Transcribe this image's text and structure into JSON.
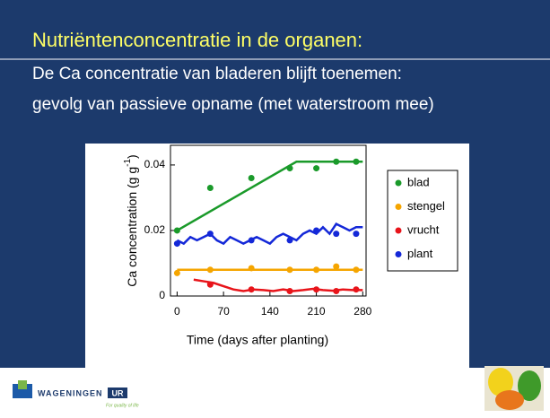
{
  "slide": {
    "title": "Nutriëntenconcentratie in de organen:",
    "lines": [
      "De Ca concentratie van bladeren blijft toenemen:",
      "gevolg van passieve opname (met waterstroom mee)"
    ],
    "logo": {
      "name": "WAGENINGEN",
      "badge": "UR",
      "tagline": "For quality of life"
    }
  },
  "chart_data": {
    "type": "scatter",
    "xlabel": "Time (days after planting)",
    "ylabel": "Ca concentration (g g",
    "ylabel_sup": "-1",
    "ylabel_end": ")",
    "xlim": [
      -10,
      285
    ],
    "xticks": [
      0,
      70,
      140,
      210,
      280
    ],
    "ylim": [
      0,
      0.046
    ],
    "yticks": [
      0,
      0.02,
      0.04
    ],
    "legend": "right",
    "series": [
      {
        "name": "blad",
        "color": "#1a9a2a",
        "x": [
          0,
          50,
          112,
          170,
          210,
          240,
          270
        ],
        "values": [
          0.02,
          0.033,
          0.036,
          0.039,
          0.039,
          0.041,
          0.041
        ],
        "fit_x": [
          0,
          180,
          280
        ],
        "fit_values": [
          0.02,
          0.041,
          0.041
        ]
      },
      {
        "name": "stengel",
        "color": "#f5a500",
        "x": [
          0,
          50,
          112,
          170,
          210,
          240,
          270
        ],
        "values": [
          0.007,
          0.008,
          0.0085,
          0.008,
          0.008,
          0.009,
          0.008
        ],
        "fit_x": [
          0,
          280
        ],
        "fit_values": [
          0.008,
          0.008
        ]
      },
      {
        "name": "vrucht",
        "color": "#e8141a",
        "x": [
          50,
          112,
          170,
          210,
          240,
          270
        ],
        "values": [
          0.0035,
          0.002,
          0.0015,
          0.002,
          0.0015,
          0.002
        ],
        "fit_x": [
          25,
          40,
          55,
          70,
          85,
          100,
          115,
          130,
          145,
          160,
          175,
          190,
          205,
          220,
          235,
          250,
          265,
          280
        ],
        "fit_values": [
          0.005,
          0.0045,
          0.004,
          0.003,
          0.002,
          0.0015,
          0.002,
          0.0018,
          0.0015,
          0.002,
          0.0015,
          0.0018,
          0.0022,
          0.0018,
          0.0016,
          0.002,
          0.0018,
          0.0018
        ]
      },
      {
        "name": "plant",
        "color": "#1428d8",
        "x": [
          0,
          50,
          112,
          170,
          210,
          240,
          270
        ],
        "values": [
          0.016,
          0.019,
          0.017,
          0.017,
          0.02,
          0.019,
          0.019
        ],
        "fit_x": [
          0,
          10,
          20,
          30,
          40,
          50,
          60,
          70,
          80,
          90,
          100,
          110,
          120,
          130,
          140,
          150,
          160,
          170,
          180,
          190,
          200,
          210,
          220,
          230,
          240,
          250,
          260,
          270,
          280
        ],
        "fit_values": [
          0.017,
          0.016,
          0.018,
          0.017,
          0.018,
          0.019,
          0.017,
          0.016,
          0.018,
          0.017,
          0.016,
          0.017,
          0.018,
          0.017,
          0.016,
          0.018,
          0.019,
          0.018,
          0.017,
          0.019,
          0.02,
          0.019,
          0.021,
          0.019,
          0.022,
          0.021,
          0.02,
          0.021,
          0.021
        ]
      }
    ]
  }
}
